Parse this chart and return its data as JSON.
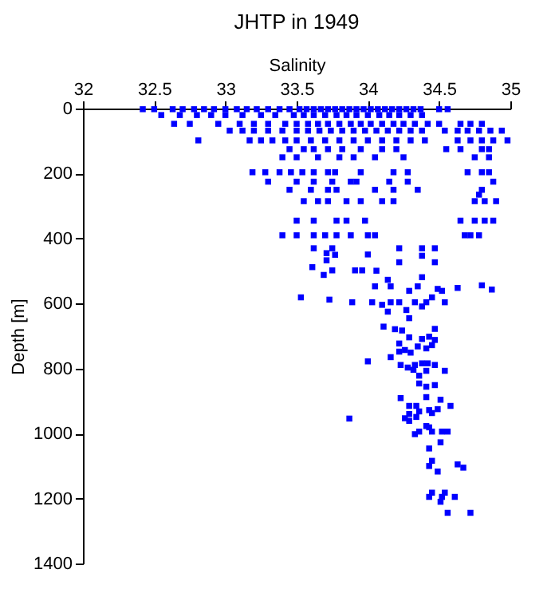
{
  "chart_data": {
    "type": "scatter",
    "title": "JHTP in 1949",
    "xlabel": "Salinity",
    "ylabel": "Depth [m]",
    "xlim": [
      32,
      35
    ],
    "xticks": [
      32,
      32.5,
      33,
      33.5,
      34,
      34.5,
      35
    ],
    "ylim": [
      1400,
      0
    ],
    "yticks": [
      0,
      200,
      400,
      600,
      800,
      1000,
      1200,
      1400
    ],
    "grid": false,
    "marker": "square",
    "series": [
      {
        "color": "#0000ff",
        "x": [
          32.42,
          32.5,
          32.63,
          32.7,
          32.78,
          32.85,
          32.92,
          33.0,
          33.08,
          33.15,
          33.22,
          33.3,
          33.38,
          33.45,
          33.52,
          33.57,
          33.62,
          33.67,
          33.72,
          33.77,
          33.82,
          33.87,
          33.92,
          33.97,
          34.02,
          34.07,
          34.12,
          34.17,
          34.22,
          34.27,
          34.32,
          34.37,
          34.5,
          34.56,
          32.55,
          32.68,
          32.8,
          32.9,
          33.0,
          33.12,
          33.25,
          33.35,
          33.48,
          33.55,
          33.62,
          33.7,
          33.78,
          33.85,
          33.92,
          34.0,
          34.08,
          34.15,
          34.22,
          34.3,
          34.38,
          32.64,
          32.75,
          32.95,
          33.1,
          33.2,
          33.3,
          33.42,
          33.5,
          33.58,
          33.65,
          33.72,
          33.8,
          33.88,
          33.95,
          34.02,
          34.1,
          34.18,
          34.25,
          34.33,
          34.42,
          34.5,
          34.65,
          34.72,
          34.8,
          33.03,
          33.12,
          33.2,
          33.3,
          33.4,
          33.5,
          33.58,
          33.66,
          33.74,
          33.82,
          33.9,
          33.98,
          34.06,
          34.14,
          34.22,
          34.3,
          34.38,
          34.54,
          34.63,
          34.7,
          34.78,
          34.86,
          34.94,
          32.81,
          33.17,
          33.25,
          33.33,
          33.42,
          33.5,
          33.6,
          33.7,
          33.8,
          33.9,
          34.0,
          34.1,
          34.2,
          34.3,
          34.4,
          34.63,
          34.72,
          34.8,
          34.88,
          34.98,
          33.45,
          33.55,
          33.62,
          33.72,
          33.82,
          33.95,
          34.1,
          34.2,
          34.55,
          34.65,
          34.8,
          34.85,
          33.4,
          33.5,
          33.65,
          33.8,
          33.9,
          34.05,
          34.25,
          34.75,
          34.85,
          33.19,
          33.28,
          33.38,
          33.46,
          33.54,
          33.62,
          33.72,
          33.77,
          33.95,
          34.18,
          34.28,
          34.7,
          34.8,
          34.85,
          33.3,
          33.5,
          33.62,
          33.75,
          33.88,
          33.92,
          34.15,
          34.28,
          34.88,
          33.45,
          33.6,
          33.72,
          33.78,
          34.05,
          34.18,
          34.35,
          34.8,
          34.78,
          33.55,
          33.65,
          33.72,
          33.85,
          33.95,
          34.1,
          34.18,
          34.75,
          34.82,
          34.9,
          33.5,
          33.62,
          33.78,
          33.85,
          33.98,
          34.65,
          34.75,
          34.82,
          34.88,
          33.4,
          33.5,
          33.62,
          33.7,
          33.78,
          33.88,
          34.0,
          34.05,
          34.68,
          34.72,
          34.78,
          33.62,
          33.75,
          34.22,
          34.38,
          34.47,
          33.71,
          33.77,
          34.0,
          34.38,
          33.71,
          34.22,
          34.47,
          33.61,
          33.75,
          33.91,
          33.96,
          34.06,
          33.69,
          34.38,
          34.14,
          34.05,
          34.16,
          34.35,
          34.29,
          34.49,
          34.52,
          34.63,
          34.8,
          34.87,
          33.53,
          33.73,
          33.89,
          34.03,
          34.1,
          34.16,
          34.22,
          34.33,
          34.41,
          34.45,
          34.54,
          34.14,
          34.27,
          34.38,
          34.29,
          34.11,
          34.19,
          34.24,
          34.47,
          34.29,
          34.38,
          34.43,
          34.47,
          34.35,
          34.41,
          34.45,
          34.22,
          34.22,
          34.26,
          34.3,
          34.16,
          34.0,
          34.23,
          34.28,
          34.33,
          34.38,
          34.42,
          34.47,
          34.54,
          34.41,
          34.32,
          34.36,
          34.36,
          34.41,
          34.47,
          34.23,
          34.41,
          34.29,
          34.34,
          34.51,
          34.58,
          34.49,
          34.43,
          34.36,
          34.45,
          34.29,
          34.26,
          34.29,
          34.34,
          33.87,
          34.41,
          34.43,
          34.36,
          34.33,
          34.45,
          34.52,
          34.56,
          34.51,
          34.43,
          34.45,
          34.43,
          34.63,
          34.67,
          34.49,
          34.45,
          34.54,
          34.43,
          34.52,
          34.61,
          34.51,
          34.56,
          34.72
        ],
        "values": [
          2,
          2,
          2,
          2,
          2,
          2,
          2,
          2,
          2,
          2,
          2,
          2,
          2,
          2,
          2,
          2,
          2,
          2,
          2,
          2,
          2,
          2,
          2,
          2,
          2,
          2,
          2,
          2,
          2,
          2,
          2,
          2,
          2,
          2,
          20,
          20,
          20,
          20,
          20,
          20,
          20,
          20,
          20,
          20,
          20,
          20,
          20,
          20,
          20,
          20,
          20,
          20,
          20,
          20,
          20,
          47,
          47,
          47,
          47,
          47,
          47,
          47,
          47,
          47,
          47,
          47,
          47,
          47,
          47,
          47,
          47,
          47,
          47,
          47,
          47,
          47,
          47,
          47,
          47,
          68,
          68,
          68,
          68,
          68,
          68,
          68,
          68,
          68,
          68,
          68,
          68,
          68,
          68,
          68,
          68,
          68,
          68,
          68,
          68,
          68,
          68,
          68,
          98,
          98,
          98,
          98,
          98,
          98,
          98,
          98,
          98,
          98,
          98,
          98,
          98,
          98,
          98,
          98,
          98,
          98,
          98,
          98,
          125,
          125,
          125,
          125,
          125,
          125,
          125,
          125,
          125,
          125,
          125,
          125,
          150,
          150,
          150,
          150,
          150,
          150,
          150,
          150,
          150,
          196,
          196,
          196,
          196,
          196,
          196,
          196,
          196,
          196,
          196,
          196,
          196,
          196,
          196,
          225,
          225,
          225,
          225,
          225,
          225,
          225,
          225,
          225,
          250,
          250,
          250,
          250,
          250,
          250,
          250,
          250,
          265,
          285,
          285,
          285,
          285,
          285,
          285,
          285,
          285,
          285,
          285,
          345,
          345,
          345,
          345,
          345,
          345,
          345,
          345,
          345,
          390,
          390,
          390,
          390,
          390,
          390,
          390,
          390,
          390,
          390,
          390,
          430,
          430,
          430,
          430,
          430,
          445,
          450,
          449,
          453,
          467,
          473,
          473,
          488,
          498,
          498,
          498,
          499,
          512,
          519,
          527,
          547,
          547,
          547,
          561,
          555,
          561,
          552,
          544,
          557,
          581,
          588,
          596,
          596,
          604,
          596,
          596,
          596,
          596,
          581,
          596,
          625,
          620,
          609,
          645,
          671,
          679,
          683,
          678,
          704,
          709,
          702,
          712,
          732,
          738,
          728,
          723,
          748,
          743,
          751,
          765,
          778,
          789,
          797,
          789,
          784,
          784,
          789,
          807,
          807,
          804,
          822,
          846,
          856,
          851,
          891,
          888,
          915,
          915,
          896,
          915,
          925,
          928,
          932,
          937,
          940,
          953,
          961,
          949,
          954,
          977,
          981,
          994,
          1002,
          994,
          994,
          994,
          1027,
          1046,
          1084,
          1100,
          1095,
          1105,
          1117,
          1182,
          1182,
          1195,
          1195,
          1195,
          1210,
          1244,
          1244
        ]
      }
    ]
  }
}
